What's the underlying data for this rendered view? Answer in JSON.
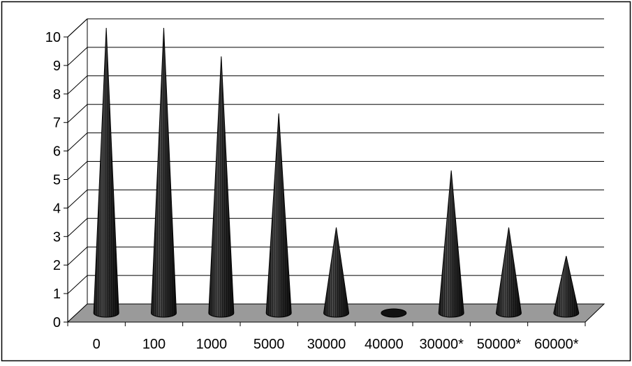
{
  "chart_data": {
    "type": "bar",
    "style": "3d-cone",
    "categories": [
      "0",
      "100",
      "1000",
      "5000",
      "30000",
      "40000",
      "30000*",
      "50000*",
      "60000*"
    ],
    "values": [
      10,
      10,
      9,
      7,
      3,
      0,
      5,
      3,
      2
    ],
    "yticks": [
      "0",
      "1",
      "2",
      "3",
      "4",
      "5",
      "6",
      "7",
      "8",
      "9",
      "10"
    ],
    "ylim": [
      0,
      10
    ],
    "grid": true,
    "legend": "none",
    "colors": {
      "cone_fill": "#3a3a3a",
      "cone_stripe": "#111111",
      "floor": "#9a9a9a",
      "gridline": "#000000",
      "frame": "#000000"
    }
  }
}
